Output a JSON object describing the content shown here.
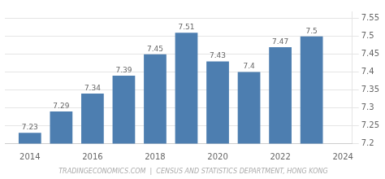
{
  "chart_data": {
    "type": "bar",
    "x": [
      2014,
      2015,
      2016,
      2017,
      2018,
      2019,
      2020,
      2021,
      2022,
      2023
    ],
    "values": [
      7.23,
      7.29,
      7.34,
      7.39,
      7.45,
      7.51,
      7.43,
      7.4,
      7.47,
      7.5
    ],
    "color": "#4d7eb0",
    "data_labels": true,
    "xlim": [
      2013.2,
      2024.3
    ],
    "xticks": [
      2014,
      2016,
      2018,
      2020,
      2022,
      2024
    ],
    "ylim": [
      7.2,
      7.57
    ],
    "yticks": [
      7.2,
      7.25,
      7.3,
      7.35,
      7.4,
      7.45,
      7.5,
      7.55
    ],
    "grid": true,
    "annotations": [
      "TRADINGECONOMICS.COM  |  CENSUS AND STATISTICS DEPARTMENT, HONG KONG"
    ]
  }
}
